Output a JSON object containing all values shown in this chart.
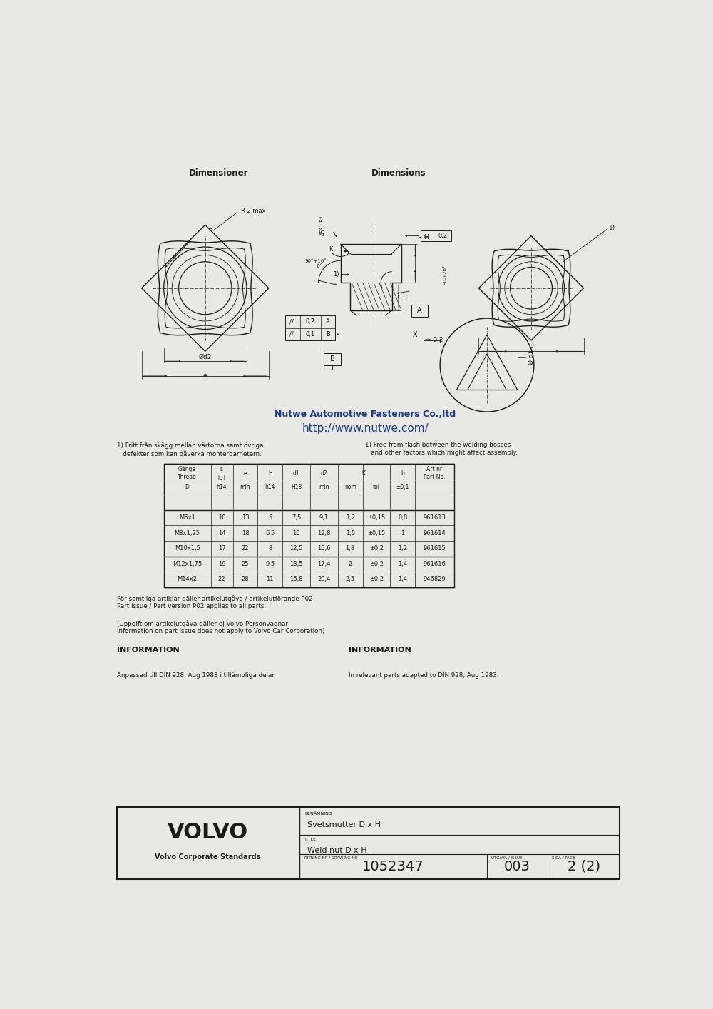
{
  "bg_color": "#e8e8e4",
  "paper_color": "#f0efeb",
  "title_swedish": "Dimensioner",
  "title_english": "Dimensions",
  "watermark": "http://www.nutwe.com/",
  "watermark_color": "#1a3a8a",
  "watermark2": "Nutwe Automotive Fasteners Co.,ltd",
  "note1_sv": "1) Fritt från skägg mellan värtorna samt övriga\n   defekter som kan påverka monterbarhetern.",
  "note1_en": "1) Free from flash between the welding bosses\n   and other factors which might affect assembly.",
  "note2_sv": "För samtliga artiklar gäller artikelutgåva / artikelutförande P02\nPart issue / Part version P02 applies to all parts.",
  "note3_sv": "(Uppgift om artikelutgåva gäller ej Volvo Personvagnar\nInformation on part issue does not apply to Volvo Car Corporation)",
  "info_title_sv": "INFORMATION",
  "info_title_en": "INFORMATION",
  "info_sv": "Anpassad till DIN 928, Aug 1983 i tillämpliga delar.",
  "info_en": "In relevant parts adapted to DIN 928, Aug 1983.",
  "table_data": [
    [
      "M6x1",
      "10",
      "13",
      "5",
      "7,5",
      "9,1",
      "1,2",
      "±0,15",
      "0,8",
      "961613"
    ],
    [
      "M8x1,25",
      "14",
      "18",
      "6,5",
      "10",
      "12,8",
      "1,5",
      "±0,15",
      "1",
      "961614"
    ],
    [
      "M10x1,5",
      "17",
      "22",
      "8",
      "12,5",
      "15,6",
      "1,8",
      "±0,2",
      "1,2",
      "961615"
    ],
    [
      "M12x1,75",
      "19",
      "25",
      "9,5",
      "13,5",
      "17,4",
      "2",
      "±0,2",
      "1,4",
      "961616"
    ],
    [
      "M14x2",
      "22",
      "28",
      "11",
      "16,8",
      "20,4",
      "2,5",
      "±0,2",
      "1,4",
      "946829"
    ]
  ],
  "title_block": {
    "company": "VOLVO",
    "subtitle": "Volvo Corporate Standards",
    "benamning_label": "BENÄMNING",
    "benamning": "Svetsmutter D x H",
    "title_label": "TITLE",
    "title_val": "Weld nut D x H",
    "drawing_no_label": "RITNING NR / DRAWING NO",
    "drawing_no": "1052347",
    "issue_label": "UTGÄVA / ISSUE",
    "issue": "003",
    "page_label": "SIDA / PAGE",
    "page": "2 (2)"
  }
}
